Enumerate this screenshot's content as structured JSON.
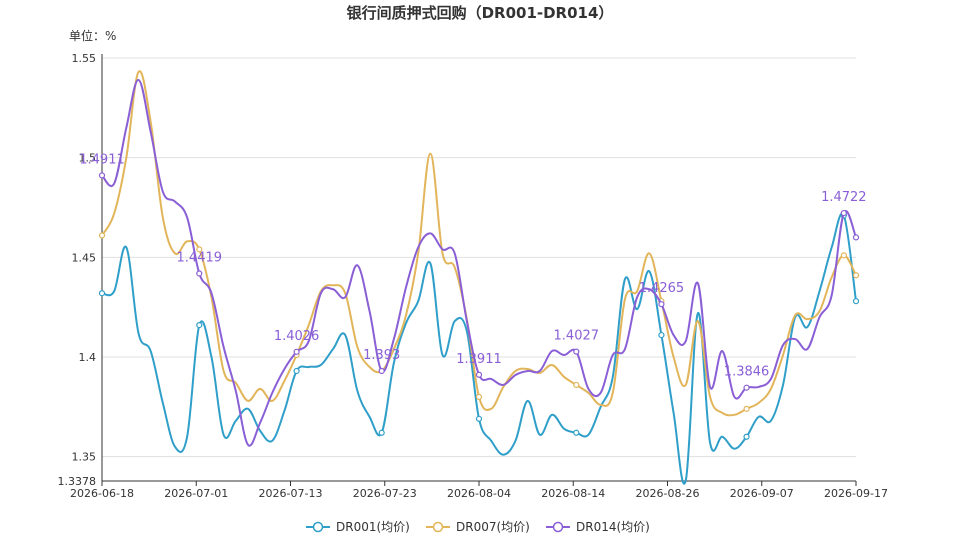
{
  "chart_data": {
    "type": "line",
    "title": "银行间质押式回购（DR001-DR014）",
    "unit_label": "单位：%",
    "xlabel": "",
    "ylabel": "",
    "ylim": [
      1.3378,
      1.55
    ],
    "y_ticks": [
      "1.3378",
      "1.35",
      "1.4",
      "1.45",
      "1.5",
      "1.55"
    ],
    "x_ticks": [
      "2026-06-18",
      "2026-07-01",
      "2026-07-13",
      "2026-07-23",
      "2026-08-04",
      "2026-08-14",
      "2026-08-26",
      "2026-09-07",
      "2026-09-17"
    ],
    "grid": true,
    "legend_position": "bottom",
    "colors": {
      "DR001": "#2f9fc9",
      "DR007": "#e2b55a",
      "DR014": "#8a5fd6"
    },
    "series": [
      {
        "name": "DR001(均价)",
        "key": "DR001",
        "values": [
          1.432,
          1.433,
          1.455,
          1.412,
          1.403,
          1.377,
          1.355,
          1.36,
          1.416,
          1.4,
          1.361,
          1.368,
          1.374,
          1.363,
          1.358,
          1.373,
          1.393,
          1.395,
          1.396,
          1.404,
          1.411,
          1.383,
          1.37,
          1.362,
          1.397,
          1.417,
          1.428,
          1.447,
          1.401,
          1.418,
          1.413,
          1.369,
          1.358,
          1.351,
          1.358,
          1.378,
          1.361,
          1.371,
          1.364,
          1.362,
          1.361,
          1.375,
          1.39,
          1.439,
          1.424,
          1.443,
          1.411,
          1.372,
          1.338,
          1.422,
          1.357,
          1.36,
          1.354,
          1.36,
          1.37,
          1.368,
          1.386,
          1.42,
          1.415,
          1.433,
          1.455,
          1.471,
          1.428
        ]
      },
      {
        "name": "DR007(均价)",
        "key": "DR007",
        "values": [
          1.461,
          1.472,
          1.5,
          1.543,
          1.518,
          1.47,
          1.452,
          1.458,
          1.454,
          1.43,
          1.393,
          1.387,
          1.378,
          1.384,
          1.378,
          1.388,
          1.401,
          1.416,
          1.433,
          1.436,
          1.432,
          1.405,
          1.395,
          1.393,
          1.404,
          1.421,
          1.452,
          1.502,
          1.452,
          1.445,
          1.419,
          1.38,
          1.374,
          1.385,
          1.393,
          1.394,
          1.392,
          1.396,
          1.39,
          1.386,
          1.382,
          1.376,
          1.382,
          1.429,
          1.433,
          1.452,
          1.428,
          1.4,
          1.386,
          1.418,
          1.38,
          1.372,
          1.371,
          1.374,
          1.377,
          1.384,
          1.401,
          1.421,
          1.419,
          1.423,
          1.44,
          1.451,
          1.441
        ]
      },
      {
        "name": "DR014(均价)",
        "key": "DR014",
        "values": [
          1.4911,
          1.487,
          1.515,
          1.539,
          1.513,
          1.483,
          1.478,
          1.47,
          1.4419,
          1.432,
          1.405,
          1.383,
          1.356,
          1.367,
          1.382,
          1.394,
          1.4026,
          1.408,
          1.432,
          1.434,
          1.43,
          1.446,
          1.423,
          1.393,
          1.409,
          1.435,
          1.455,
          1.462,
          1.454,
          1.452,
          1.418,
          1.3911,
          1.389,
          1.386,
          1.391,
          1.393,
          1.393,
          1.403,
          1.401,
          1.4027,
          1.384,
          1.382,
          1.401,
          1.404,
          1.43,
          1.434,
          1.4265,
          1.411,
          1.408,
          1.437,
          1.385,
          1.403,
          1.38,
          1.3846,
          1.385,
          1.389,
          1.406,
          1.409,
          1.404,
          1.42,
          1.431,
          1.4722,
          1.46
        ]
      }
    ],
    "point_labels": [
      {
        "series": "DR014",
        "index": 0,
        "text": "1.4911"
      },
      {
        "series": "DR014",
        "index": 8,
        "text": "1.4419"
      },
      {
        "series": "DR014",
        "index": 16,
        "text": "1.4026"
      },
      {
        "series": "DR014",
        "index": 23,
        "text": "1.393"
      },
      {
        "series": "DR014",
        "index": 31,
        "text": "1.3911"
      },
      {
        "series": "DR014",
        "index": 39,
        "text": "1.4027"
      },
      {
        "series": "DR014",
        "index": 46,
        "text": "1.4265"
      },
      {
        "series": "DR014",
        "index": 53,
        "text": "1.3846"
      },
      {
        "series": "DR014",
        "index": 61,
        "text": "1.4722"
      }
    ]
  }
}
